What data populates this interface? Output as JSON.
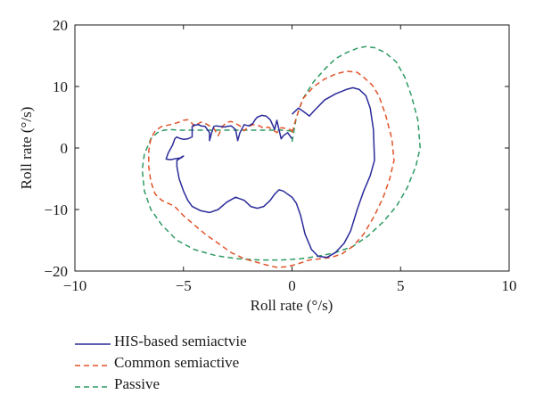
{
  "chart_data": {
    "type": "line",
    "title": "",
    "xlabel": "Roll rate (°/s)",
    "ylabel": "Roll rate (°/s)",
    "xlim": [
      -10,
      10
    ],
    "ylim": [
      -20,
      20
    ],
    "xticks": [
      -10,
      -5,
      0,
      5,
      10
    ],
    "yticks": [
      -20,
      -10,
      0,
      10,
      20
    ],
    "xtick_labels": [
      "−10",
      "−5",
      "0",
      "5",
      "10"
    ],
    "ytick_labels": [
      "−20",
      "−10",
      "0",
      "10",
      "20"
    ],
    "grid": false,
    "legend_position": "below",
    "series": [
      {
        "name": "HIS-based semiactvie",
        "color": "#2b2b9a",
        "dash": "solid",
        "x": [
          0,
          0.3,
          0.5,
          0.8,
          1.0,
          1.5,
          2.0,
          2.5,
          2.8,
          3.1,
          3.4,
          3.6,
          3.75,
          3.8,
          3.6,
          3.3,
          3.0,
          2.7,
          2.4,
          2.0,
          1.6,
          1.2,
          0.9,
          0.6,
          0.4,
          0.2,
          0.0,
          -0.2,
          -0.4,
          -0.6,
          -0.8,
          -1.0,
          -1.3,
          -1.6,
          -1.9,
          -2.2,
          -2.6,
          -3.0,
          -3.4,
          -3.8,
          -4.2,
          -4.6,
          -4.8,
          -5.0,
          -5.2,
          -5.3,
          -5.3,
          -5.2,
          -5.1,
          -5.0,
          -5.1,
          -5.3,
          -5.6,
          -5.8,
          -5.7,
          -5.5,
          -5.4,
          -5.3,
          -5.2,
          -5.0,
          -4.8,
          -4.6,
          -4.6,
          -4.5,
          -4.5,
          -4.3,
          -4.2,
          -4.0,
          -3.8,
          -3.8,
          -3.7,
          -3.6,
          -3.5,
          -3.3,
          -3.1,
          -3.0,
          -2.8,
          -2.6,
          -2.5,
          -2.4,
          -2.2,
          -2.0,
          -1.8,
          -1.7,
          -1.6,
          -1.4,
          -1.2,
          -1.0,
          -0.9,
          -0.8,
          -0.7,
          -0.6,
          -0.5,
          -0.4,
          -0.2,
          0.0
        ],
        "y": [
          5.5,
          6.5,
          6.0,
          5.2,
          6.0,
          7.8,
          8.8,
          9.5,
          9.8,
          9.5,
          8.5,
          6.5,
          3.0,
          -2.0,
          -4.5,
          -7.0,
          -10.0,
          -13.5,
          -15.5,
          -17.0,
          -17.8,
          -17.6,
          -16.5,
          -14.0,
          -11.0,
          -9.0,
          -8.0,
          -7.5,
          -7.0,
          -6.8,
          -7.5,
          -8.5,
          -9.5,
          -9.8,
          -9.5,
          -8.5,
          -8.0,
          -8.8,
          -10.0,
          -10.5,
          -10.2,
          -9.5,
          -8.5,
          -7.0,
          -5.0,
          -3.0,
          -2.0,
          -1.8,
          -1.5,
          -1.3,
          -1.6,
          -1.7,
          -1.9,
          -1.8,
          -0.8,
          0.5,
          1.5,
          1.8,
          1.6,
          1.4,
          1.5,
          1.8,
          3.5,
          3.8,
          3.7,
          3.8,
          3.6,
          3.5,
          2.5,
          1.2,
          2.5,
          3.5,
          3.6,
          3.5,
          3.4,
          3.5,
          3.6,
          3.0,
          1.2,
          2.5,
          3.8,
          3.6,
          4.0,
          4.6,
          5.0,
          5.3,
          5.2,
          4.6,
          3.8,
          3.0,
          4.5,
          3.0,
          1.5,
          2.0,
          2.5,
          1.5
        ]
      },
      {
        "name": "Common semiactive",
        "color": "#e0532a",
        "dash": "dashed",
        "x": [
          0,
          0.2,
          0.5,
          1.0,
          1.5,
          2.0,
          2.5,
          3.0,
          3.3,
          3.7,
          4.0,
          4.3,
          4.6,
          4.7,
          4.5,
          4.2,
          3.8,
          3.3,
          2.8,
          2.3,
          1.8,
          1.3,
          0.8,
          0.3,
          -0.2,
          -0.7,
          -1.2,
          -1.7,
          -2.2,
          -2.8,
          -3.4,
          -4.0,
          -4.5,
          -5.0,
          -5.4,
          -5.7,
          -6.0,
          -6.3,
          -6.5,
          -6.6,
          -6.6,
          -6.5,
          -6.3,
          -6.0,
          -5.6,
          -5.2,
          -5.0,
          -4.8,
          -4.6,
          -4.5,
          -4.4,
          -4.2,
          -4.0,
          -3.8,
          -3.6,
          -3.4,
          -3.2,
          -3.0,
          -2.8,
          -2.6,
          -2.4,
          -2.2,
          -2.0,
          -1.8,
          -1.5,
          -1.3,
          -1.1,
          -0.9,
          -0.7,
          -0.5,
          -0.3,
          -0.1,
          0.0
        ],
        "y": [
          2.5,
          5.0,
          8.0,
          10.0,
          11.2,
          12.0,
          12.5,
          12.3,
          11.5,
          10.2,
          8.5,
          5.5,
          1.5,
          -2.0,
          -5.0,
          -8.0,
          -11.0,
          -14.0,
          -16.0,
          -17.2,
          -17.8,
          -18.0,
          -18.2,
          -18.8,
          -19.3,
          -19.4,
          -19.0,
          -18.5,
          -18.0,
          -17.0,
          -15.5,
          -14.0,
          -12.5,
          -11.0,
          -9.5,
          -9.0,
          -8.5,
          -7.5,
          -5.5,
          -3.0,
          -0.5,
          1.5,
          2.8,
          3.5,
          3.8,
          4.2,
          4.5,
          4.6,
          4.0,
          3.5,
          3.8,
          4.2,
          4.0,
          3.6,
          3.2,
          2.0,
          3.5,
          4.2,
          4.3,
          4.0,
          3.6,
          2.8,
          3.5,
          3.8,
          3.6,
          3.2,
          3.4,
          3.0,
          2.5,
          3.3,
          3.2,
          3.0,
          2.8
        ]
      },
      {
        "name": "Passive",
        "color": "#2e9a63",
        "dash": "dashed",
        "x": [
          0,
          0.2,
          0.5,
          1.0,
          1.5,
          2.0,
          2.5,
          3.0,
          3.4,
          3.8,
          4.3,
          4.8,
          5.2,
          5.5,
          5.8,
          5.9,
          5.7,
          5.3,
          4.8,
          4.2,
          3.5,
          2.8,
          2.0,
          1.2,
          0.4,
          -0.5,
          -1.5,
          -2.5,
          -3.5,
          -4.5,
          -5.3,
          -6.0,
          -6.5,
          -6.8,
          -6.9,
          -6.8,
          -6.5,
          -6.2,
          -5.9,
          -5.6,
          -5.2,
          -4.5,
          -3.8,
          -3.0,
          -2.2,
          -1.5,
          -1.0,
          -0.5,
          -0.1,
          0.0
        ],
        "y": [
          1.0,
          5.0,
          8.0,
          10.8,
          12.8,
          14.5,
          15.5,
          16.2,
          16.5,
          16.3,
          15.5,
          14.0,
          11.5,
          8.5,
          4.5,
          0.0,
          -3.0,
          -6.5,
          -9.5,
          -12.0,
          -14.3,
          -16.0,
          -17.0,
          -17.6,
          -18.0,
          -18.2,
          -18.2,
          -18.0,
          -17.5,
          -16.5,
          -15.0,
          -12.5,
          -10.0,
          -7.0,
          -3.5,
          -1.0,
          1.5,
          2.5,
          2.9,
          3.0,
          2.9,
          2.9,
          2.9,
          2.9,
          2.9,
          2.9,
          2.9,
          2.9,
          2.8,
          2.7
        ]
      }
    ]
  }
}
